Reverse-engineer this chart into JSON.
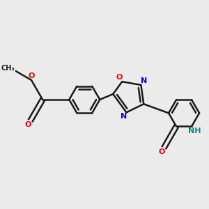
{
  "bg_color": "#ebebeb",
  "bond_color": "#1a1a1a",
  "bond_width": 1.8,
  "atom_colors": {
    "N": "#0000ee",
    "O": "#ee0000",
    "NH": "#008888",
    "C": "#1a1a1a"
  },
  "font_size_atoms": 8,
  "font_size_small": 7
}
